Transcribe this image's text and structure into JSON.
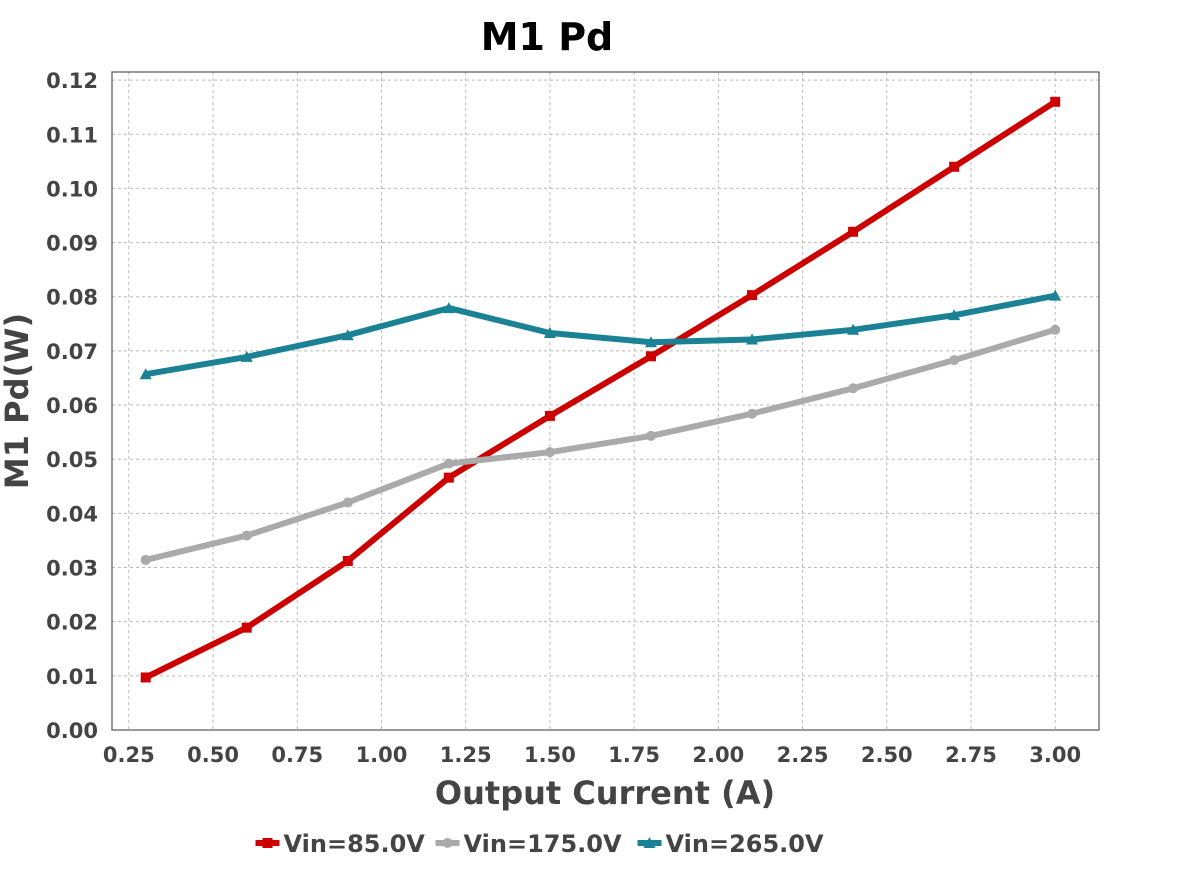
{
  "chart_data": {
    "type": "line",
    "title": "M1 Pd",
    "xlabel": "Output Current (A)",
    "ylabel": "M1 Pd(W)",
    "xlim": [
      0.2,
      3.13
    ],
    "ylim": [
      0.0,
      0.1215
    ],
    "x_ticks": [
      "0.25",
      "0.50",
      "0.75",
      "1.00",
      "1.25",
      "1.50",
      "1.75",
      "2.00",
      "2.25",
      "2.50",
      "2.75",
      "3.00"
    ],
    "y_ticks": [
      "0.00",
      "0.01",
      "0.02",
      "0.03",
      "0.04",
      "0.05",
      "0.06",
      "0.07",
      "0.08",
      "0.09",
      "0.10",
      "0.11",
      "0.12"
    ],
    "grid": true,
    "legend_position": "bottom",
    "x": [
      0.3,
      0.6,
      0.9,
      1.2,
      1.5,
      1.8,
      2.1,
      2.4,
      2.7,
      3.0
    ],
    "series": [
      {
        "name": "Vin=85.0V",
        "color": "#cc0000",
        "marker": "square",
        "values": [
          0.0097,
          0.0189,
          0.0312,
          0.0466,
          0.058,
          0.069,
          0.0803,
          0.092,
          0.104,
          0.116
        ]
      },
      {
        "name": "Vin=175.0V",
        "color": "#aaaaaa",
        "marker": "circle",
        "values": [
          0.0314,
          0.0359,
          0.042,
          0.0492,
          0.0513,
          0.0543,
          0.0584,
          0.0631,
          0.0683,
          0.0739
        ]
      },
      {
        "name": "Vin=265.0V",
        "color": "#1a8294",
        "marker": "triangle",
        "values": [
          0.0657,
          0.0689,
          0.0729,
          0.0779,
          0.0733,
          0.0716,
          0.0721,
          0.0739,
          0.0766,
          0.0802
        ]
      }
    ]
  }
}
